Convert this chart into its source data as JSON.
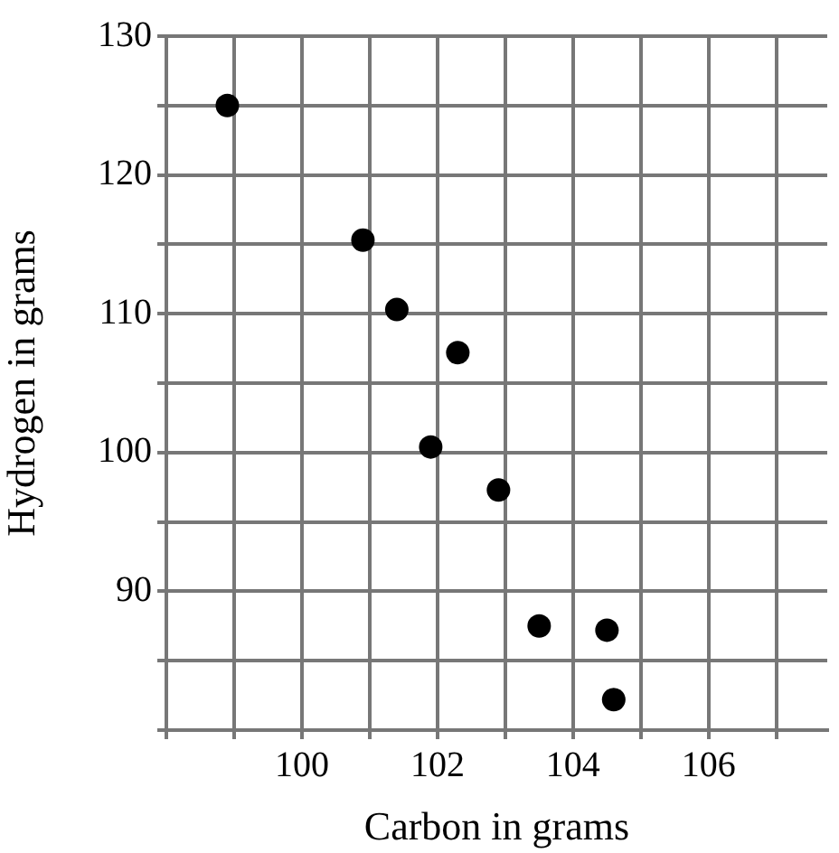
{
  "chart_data": {
    "type": "scatter",
    "xlabel": "Carbon in grams",
    "ylabel": "Hydrogen in grams",
    "x": [
      98.9,
      100.9,
      101.4,
      102.3,
      101.9,
      102.9,
      103.5,
      104.5,
      104.6
    ],
    "values": [
      125,
      115.3,
      110.3,
      107.2,
      100.4,
      97.3,
      87.5,
      87.2,
      82.2
    ],
    "color": "#000000",
    "marker": "circle",
    "grid": true,
    "legend": false,
    "xlim": [
      98,
      107.75
    ],
    "xticks": [
      {
        "value": 98,
        "label": null
      },
      {
        "value": 99,
        "label": null
      },
      100,
      {
        "value": 101,
        "label": null
      },
      102,
      {
        "value": 103,
        "label": null
      },
      104,
      {
        "value": 105,
        "label": null
      },
      106,
      {
        "value": 107,
        "label": null
      }
    ],
    "ylim": [
      80,
      130
    ],
    "yticks": [
      {
        "value": 80,
        "label": null
      },
      {
        "value": 85,
        "label": null
      },
      90,
      {
        "value": 95,
        "label": null
      },
      100,
      {
        "value": 105,
        "label": null
      },
      110,
      {
        "value": 115,
        "label": null
      },
      120,
      {
        "value": 125,
        "label": null
      },
      130
    ]
  }
}
